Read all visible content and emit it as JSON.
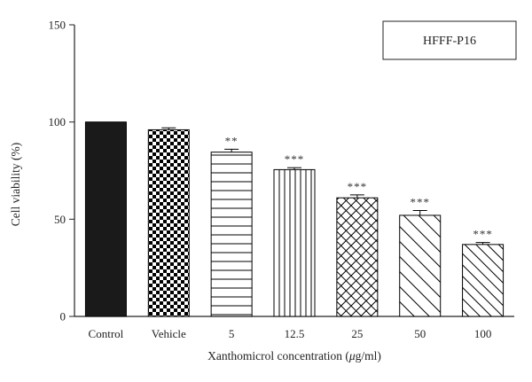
{
  "chart_data": {
    "type": "bar",
    "title": "",
    "legend": {
      "label": "HFFF-P16",
      "position": "top-right"
    },
    "xlabel": "Xanthomicrol concentration (μg/ml)",
    "ylabel": "Cell viability (%)",
    "ylim": [
      0,
      150
    ],
    "yticks": [
      0,
      50,
      100,
      150
    ],
    "grid": false,
    "categories": [
      "Control",
      "Vehicle",
      "5",
      "12.5",
      "25",
      "50",
      "100"
    ],
    "values": [
      100,
      96,
      84.5,
      75.5,
      61,
      52,
      37
    ],
    "errors": [
      0,
      1,
      1.5,
      1,
      1.5,
      2.5,
      1
    ],
    "significance": [
      "",
      "",
      "**",
      "***",
      "***",
      "***",
      "***"
    ],
    "fill_patterns": [
      "solid-black",
      "checkerboard",
      "horizontal-lines",
      "vertical-lines",
      "crosshatch-diagonal",
      "diagonal-lines-wide",
      "diagonal-lines-narrow"
    ]
  }
}
